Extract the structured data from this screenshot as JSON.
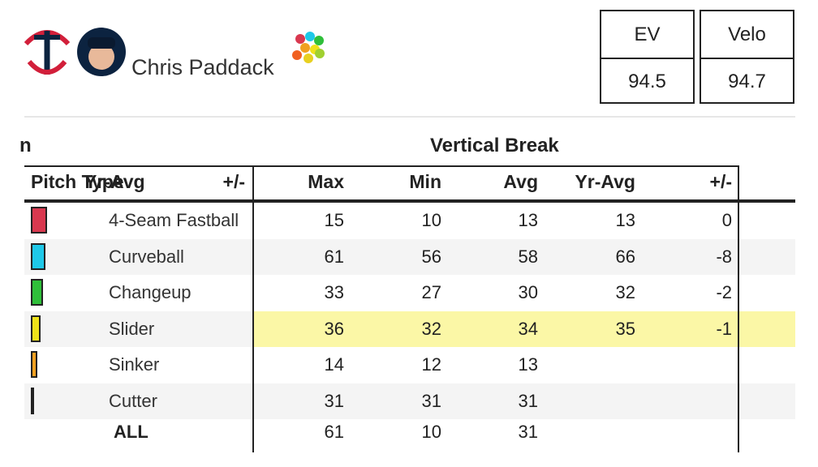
{
  "header": {
    "player": "Chris Paddack",
    "stats": [
      {
        "label": "EV",
        "value": "94.5"
      },
      {
        "label": "Velo",
        "value": "94.7"
      }
    ]
  },
  "table": {
    "cut_label": "n",
    "group": "Vertical Break",
    "columns": [
      "Pitch Type",
      "Yr-Avg",
      "+/-",
      "Max",
      "Min",
      "Avg",
      "Yr-Avg",
      "+/-"
    ],
    "highlight_row": 3,
    "rows": [
      {
        "pitch": "4-Seam Fastball",
        "color": "#d9384f",
        "values": [
          15,
          10,
          13,
          13,
          0
        ]
      },
      {
        "pitch": "Curveball",
        "color": "#1ec8e8",
        "values": [
          61,
          56,
          58,
          66,
          -8
        ]
      },
      {
        "pitch": "Changeup",
        "color": "#2fbf3a",
        "values": [
          33,
          27,
          30,
          32,
          -2
        ]
      },
      {
        "pitch": "Slider",
        "color": "#eee21a",
        "values": [
          36,
          32,
          34,
          35,
          -1
        ]
      },
      {
        "pitch": "Sinker",
        "color": "#f0a020",
        "values": [
          14,
          12,
          13
        ]
      },
      {
        "pitch": "Cutter",
        "color": "#5a3a2a",
        "values": [
          31,
          31,
          31
        ]
      }
    ],
    "total": {
      "label": "ALL",
      "values": [
        61,
        10,
        31
      ]
    }
  }
}
